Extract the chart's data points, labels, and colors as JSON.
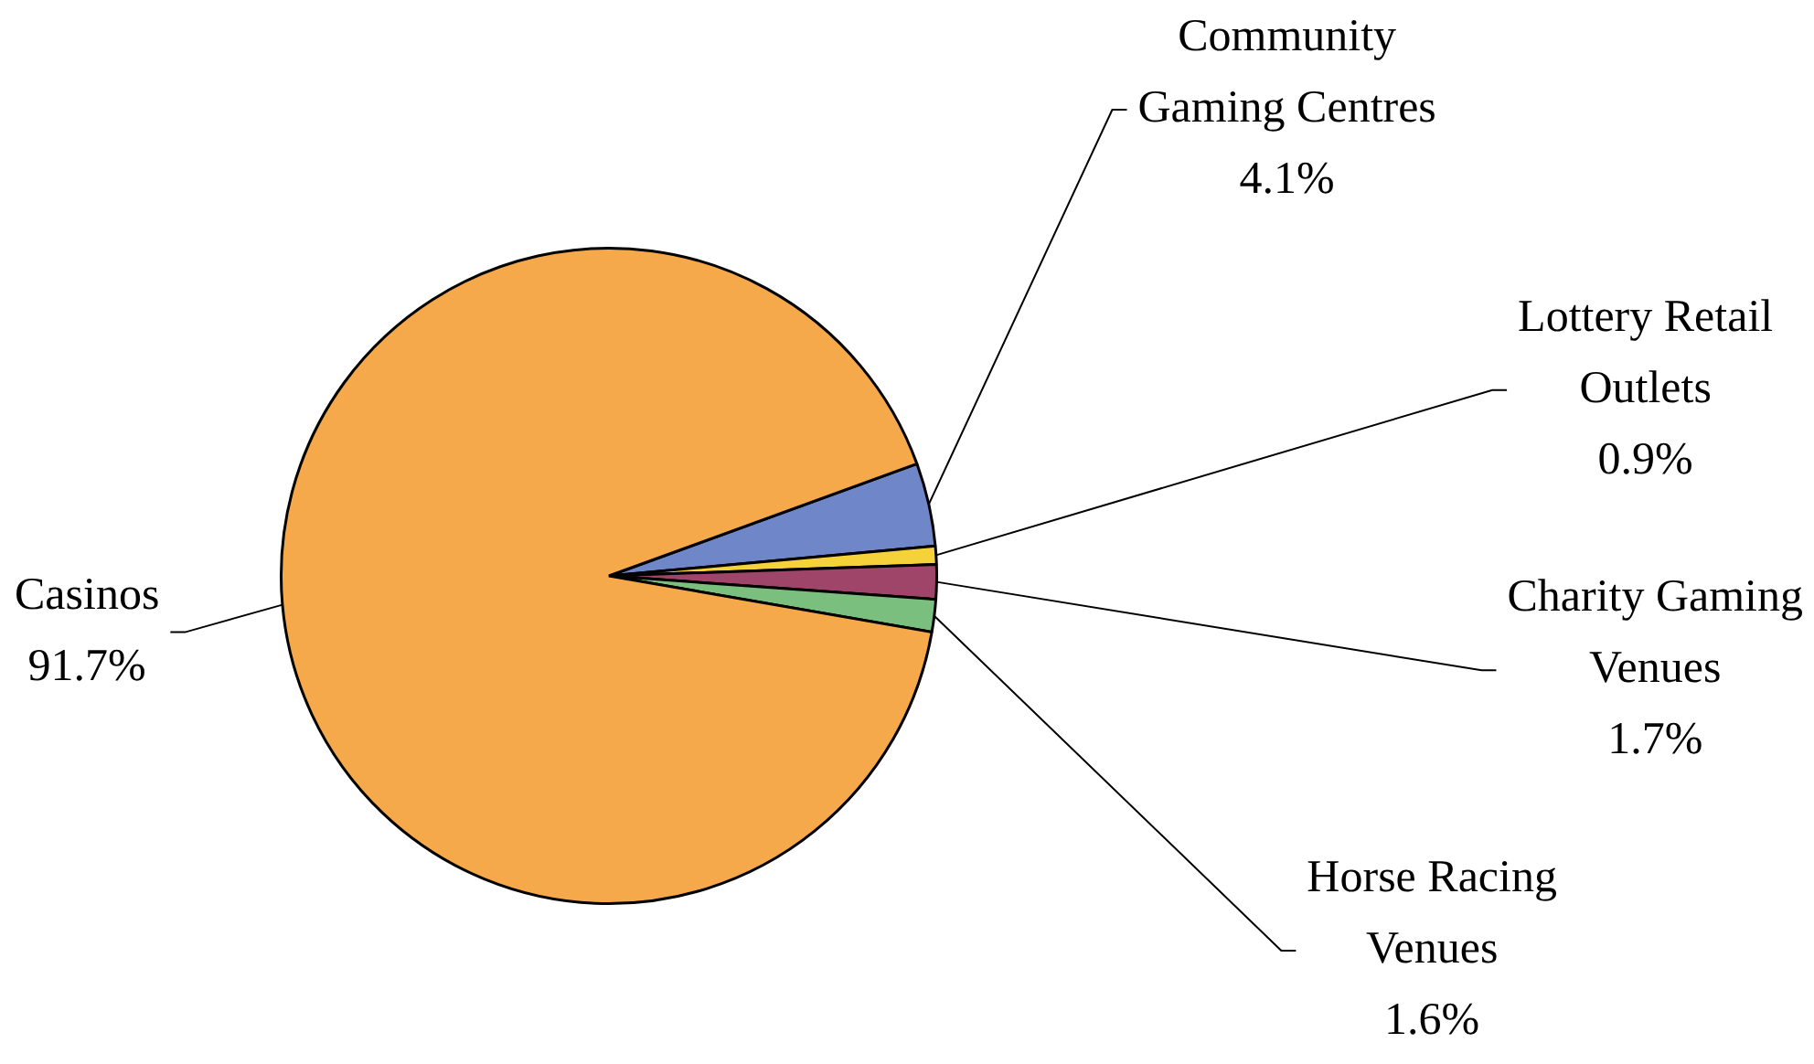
{
  "chart_data": {
    "type": "pie",
    "categories": [
      "Community Gaming Centres",
      "Lottery Retail Outlets",
      "Charity Gaming Venues",
      "Horse Racing Venues",
      "Casinos"
    ],
    "values": [
      4.1,
      0.9,
      1.7,
      1.6,
      91.7
    ],
    "colors": [
      "#6f86c9",
      "#f5d23a",
      "#a0456a",
      "#7bbf7f",
      "#f5a94a"
    ],
    "value_labels": [
      "4.1%",
      "0.9%",
      "1.7%",
      "1.6%",
      "91.7%"
    ],
    "legend": false
  }
}
